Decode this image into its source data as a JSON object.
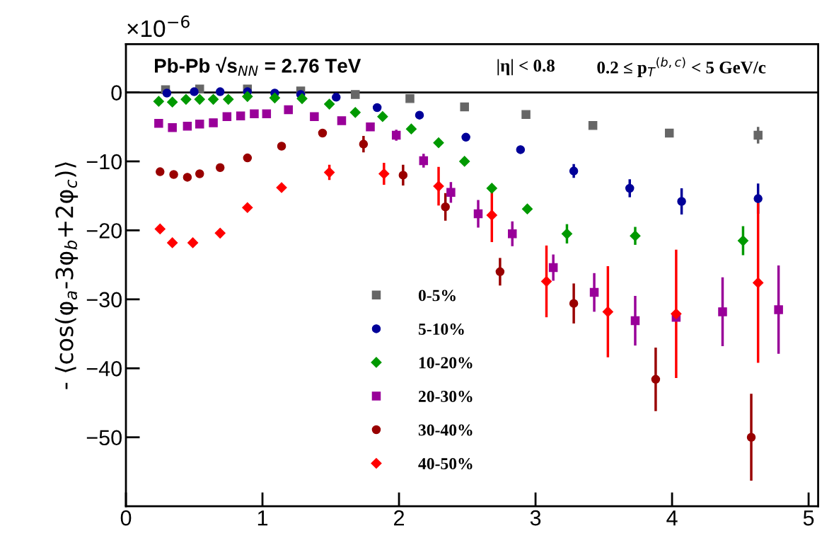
{
  "chart_data": {
    "type": "scatter",
    "ylabel": "- ⟨cos(φ$_{a}$-3φ$_{b}$+2φ$_{c}$)⟩",
    "annotations": [
      "×10$^{−6}$",
      "Pb-Pb √s$_{NN}$ = 2.76 TeV",
      "|η| < 0.8",
      "0.2 ≤ p$_{T}$$^{(b,c)}$ < 5 GeV/c"
    ],
    "xlim": [
      0,
      5.07
    ],
    "xticks": [
      0,
      1,
      2,
      3,
      4,
      5
    ],
    "ylim": [
      -60,
      7
    ],
    "yticks": [
      {
        "value": -50,
        "label": "−50"
      },
      {
        "value": -40,
        "label": "−40"
      },
      {
        "value": -30,
        "label": "−30"
      },
      {
        "value": -20,
        "label": "−20"
      },
      {
        "value": -10,
        "label": "−10"
      },
      0
    ],
    "ref_lines": [
      {
        "axis": "y",
        "value": 0,
        "color": "#000000"
      }
    ],
    "legend": "bottom",
    "grid": false,
    "series": [
      {
        "name": "0-5%",
        "color": "#666666",
        "marker": "square",
        "x": [
          0.29,
          0.54,
          0.89,
          1.28,
          1.68,
          2.08,
          2.48,
          2.93,
          3.42,
          3.98,
          4.63
        ],
        "values": [
          0.4,
          0.5,
          0.5,
          0.2,
          -0.3,
          -0.9,
          -2.1,
          -3.2,
          -4.8,
          -5.9,
          -6.2
        ],
        "errors": [
          null,
          null,
          null,
          null,
          null,
          null,
          null,
          null,
          null,
          0.5,
          1.2
        ]
      },
      {
        "name": "5-10%",
        "color": "#000099",
        "marker": "circle",
        "x": [
          0.3,
          0.5,
          0.69,
          0.89,
          1.09,
          1.28,
          1.54,
          1.84,
          2.15,
          2.49,
          2.89,
          3.28,
          3.69,
          4.07,
          4.63
        ],
        "values": [
          -0.1,
          0.1,
          0.1,
          0.1,
          -0.1,
          -0.3,
          -0.7,
          -2.2,
          -3.3,
          -6.5,
          -8.3,
          -11.4,
          -13.9,
          -15.8,
          -15.4
        ],
        "errors": [
          null,
          null,
          null,
          null,
          null,
          null,
          null,
          null,
          null,
          null,
          0.5,
          1.0,
          1.3,
          1.9,
          2.2
        ]
      },
      {
        "name": "10-20%",
        "color": "#009900",
        "marker": "diamond",
        "x": [
          0.24,
          0.34,
          0.44,
          0.54,
          0.64,
          0.75,
          0.89,
          1.09,
          1.29,
          1.49,
          1.68,
          1.88,
          2.09,
          2.29,
          2.48,
          2.68,
          2.94,
          3.23,
          3.73,
          4.52
        ],
        "values": [
          -1.3,
          -1.4,
          -1.0,
          -1.0,
          -1.0,
          -1.0,
          -0.6,
          -0.8,
          -0.9,
          -1.7,
          -2.9,
          -3.5,
          -5.3,
          -7.3,
          -10.0,
          -13.9,
          -16.9,
          -20.5,
          -20.8,
          -21.5
        ],
        "errors": [
          null,
          null,
          null,
          null,
          null,
          null,
          null,
          null,
          null,
          null,
          null,
          null,
          null,
          null,
          null,
          0.6,
          0.6,
          1.4,
          1.3,
          2.1
        ]
      },
      {
        "name": "20-30%",
        "color": "#990099",
        "marker": "square",
        "x": [
          0.24,
          0.34,
          0.45,
          0.54,
          0.64,
          0.74,
          0.84,
          0.94,
          1.03,
          1.19,
          1.38,
          1.58,
          1.79,
          1.98,
          2.18,
          2.38,
          2.58,
          2.83,
          3.13,
          3.43,
          3.73,
          4.03,
          4.37,
          4.78
        ],
        "values": [
          -4.5,
          -5.1,
          -4.9,
          -4.6,
          -4.4,
          -3.5,
          -3.4,
          -3.1,
          -3.1,
          -2.5,
          -3.5,
          -4.1,
          -5.0,
          -6.2,
          -9.9,
          -14.5,
          -17.6,
          -20.5,
          -25.4,
          -29.0,
          -33.1,
          -32.6,
          -31.8,
          -31.5
        ],
        "errors": [
          null,
          null,
          null,
          null,
          null,
          null,
          null,
          null,
          null,
          null,
          null,
          null,
          null,
          0.8,
          1.0,
          1.5,
          2.0,
          1.8,
          1.9,
          2.8,
          3.6,
          null,
          5.0,
          6.4
        ]
      },
      {
        "name": "30-40%",
        "color": "#990000",
        "marker": "circle",
        "x": [
          0.25,
          0.35,
          0.45,
          0.54,
          0.69,
          0.89,
          1.14,
          1.44,
          1.74,
          2.03,
          2.34,
          2.74,
          3.28,
          3.88,
          4.58
        ],
        "values": [
          -11.5,
          -11.9,
          -12.3,
          -11.8,
          -10.9,
          -9.5,
          -7.8,
          -5.9,
          -7.5,
          -12.0,
          -16.6,
          -26.0,
          -30.6,
          -41.6,
          -50.0
        ],
        "errors": [
          null,
          null,
          null,
          null,
          null,
          null,
          null,
          null,
          1.2,
          1.5,
          2.0,
          2.0,
          2.9,
          4.6,
          6.3
        ]
      },
      {
        "name": "40-50%",
        "color": "#ff0000",
        "marker": "diamond",
        "x": [
          0.25,
          0.34,
          0.49,
          0.69,
          0.89,
          1.14,
          1.49,
          1.89,
          2.29,
          2.68,
          3.08,
          3.53,
          4.03,
          4.63
        ],
        "values": [
          -19.8,
          -21.8,
          -21.8,
          -20.4,
          -16.7,
          -13.8,
          -11.6,
          -11.8,
          -13.6,
          -17.8,
          -27.4,
          -31.8,
          -32.1,
          -27.6
        ],
        "errors": [
          null,
          null,
          null,
          null,
          null,
          null,
          1.1,
          1.6,
          2.8,
          3.9,
          5.2,
          6.6,
          9.3,
          11.6
        ]
      }
    ]
  }
}
